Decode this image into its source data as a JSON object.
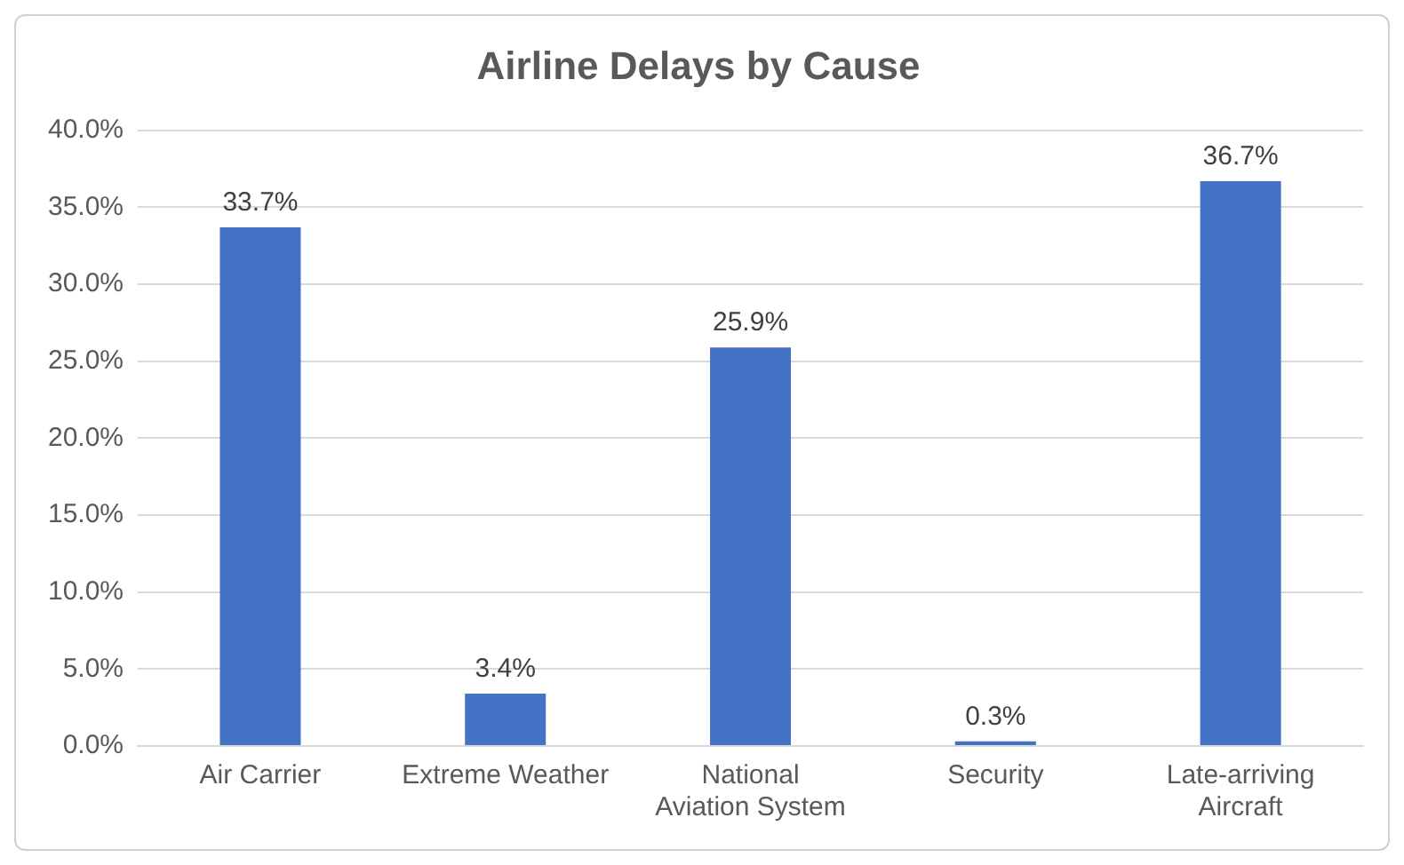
{
  "chart_data": {
    "type": "bar",
    "title": "Airline Delays by Cause",
    "categories": [
      "Air Carrier",
      "Extreme Weather",
      "National Aviation System",
      "Security",
      "Late-arriving Aircraft"
    ],
    "values": [
      33.7,
      3.4,
      25.9,
      0.3,
      36.7
    ],
    "value_labels": [
      "33.7%",
      "3.4%",
      "25.9%",
      "0.3%",
      "36.7%"
    ],
    "color": "#4472c4",
    "ylim": [
      0,
      40
    ],
    "yticks": [
      {
        "value": 0,
        "label": "0.0%"
      },
      {
        "value": 5,
        "label": "5.0%"
      },
      {
        "value": 10,
        "label": "10.0%"
      },
      {
        "value": 15,
        "label": "15.0%"
      },
      {
        "value": 20,
        "label": "20.0%"
      },
      {
        "value": 25,
        "label": "25.0%"
      },
      {
        "value": 30,
        "label": "30.0%"
      },
      {
        "value": 35,
        "label": "35.0%"
      },
      {
        "value": 40,
        "label": "40.0%"
      }
    ],
    "grid": "y"
  }
}
